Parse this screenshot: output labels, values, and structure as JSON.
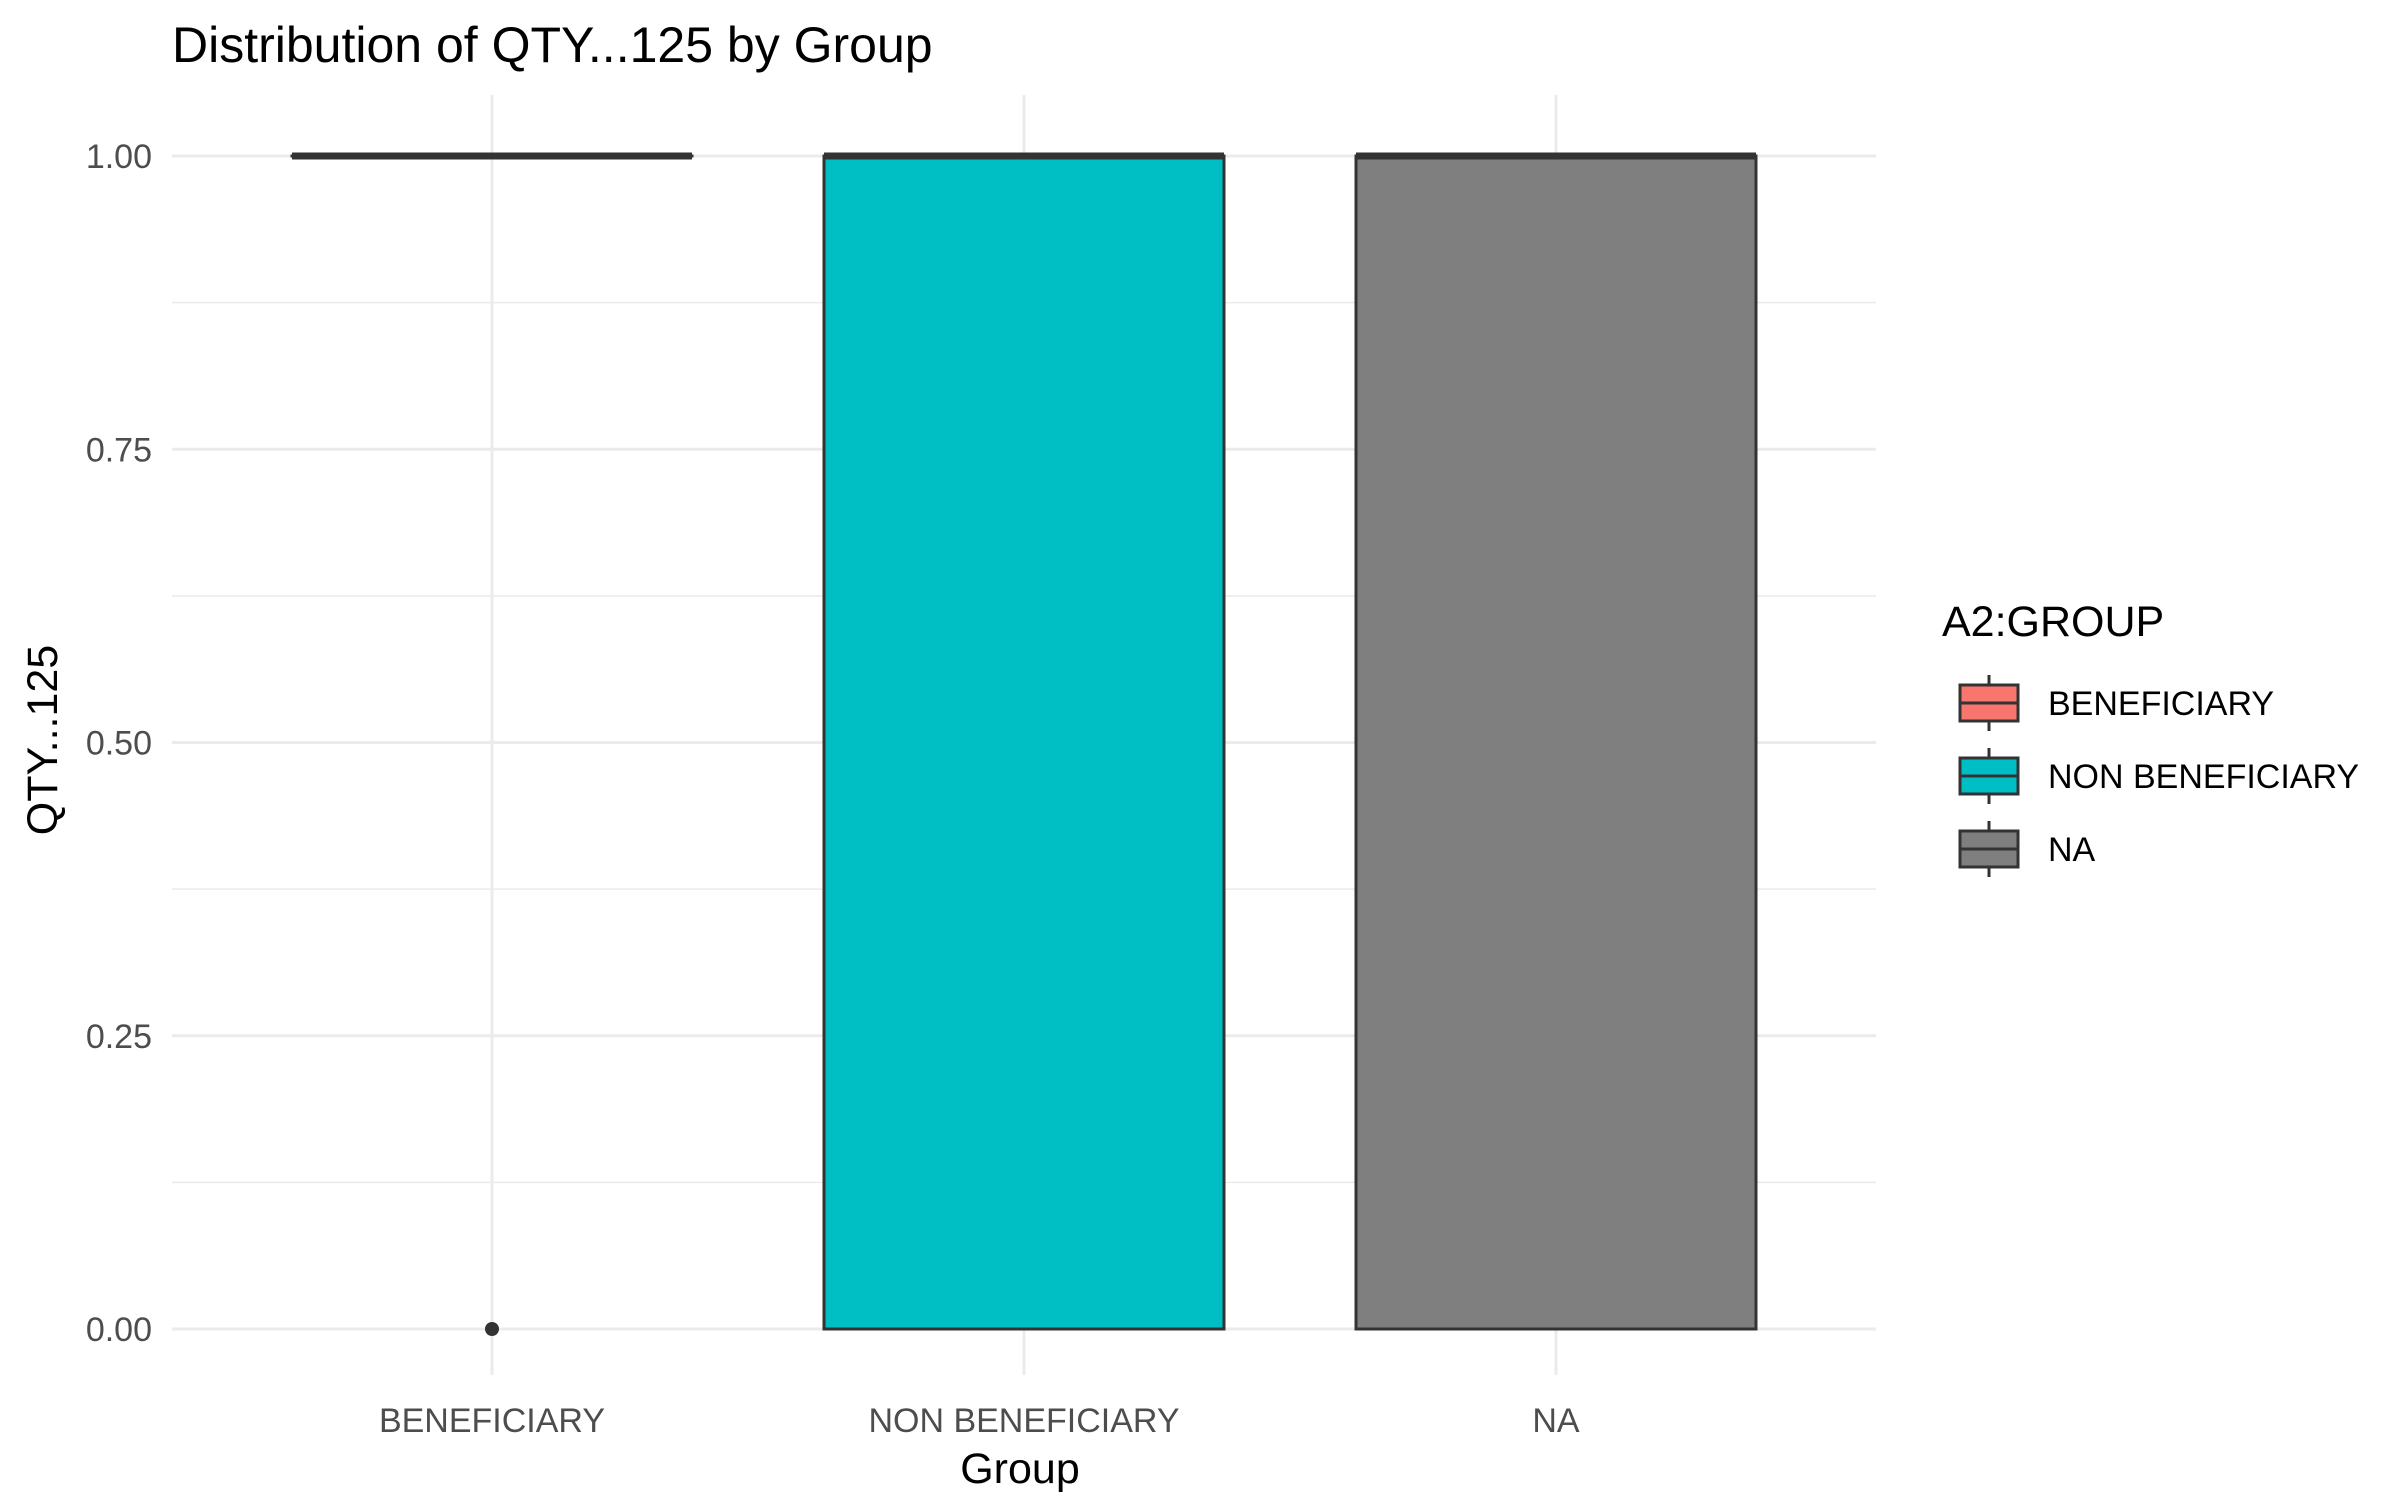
{
  "chart_data": {
    "type": "boxplot",
    "title": "Distribution of QTY...125 by Group",
    "xlabel": "Group",
    "ylabel": "QTY...125",
    "ylim": [
      0,
      1
    ],
    "yticks": [
      "0.00",
      "0.25",
      "0.50",
      "0.75",
      "1.00"
    ],
    "categories": [
      "BENEFICIARY",
      "NON BENEFICIARY",
      "NA"
    ],
    "legend": {
      "title": "A2:GROUP",
      "position": "right",
      "entries": [
        {
          "label": "BENEFICIARY",
          "color": "#f8766d"
        },
        {
          "label": "NON BENEFICIARY",
          "color": "#00bfc4"
        },
        {
          "label": "NA",
          "color": "#7f7f7f"
        }
      ]
    },
    "series": [
      {
        "category": "BENEFICIARY",
        "min": 1,
        "q1": 1,
        "median": 1,
        "q3": 1,
        "max": 1,
        "outliers": [
          0
        ],
        "color": "#f8766d"
      },
      {
        "category": "NON BENEFICIARY",
        "min": 0,
        "q1": 0,
        "median": 1,
        "q3": 1,
        "max": 1,
        "outliers": [],
        "color": "#00bfc4"
      },
      {
        "category": "NA",
        "min": 0,
        "q1": 0,
        "median": 1,
        "q3": 1,
        "max": 1,
        "outliers": [],
        "color": "#7f7f7f"
      }
    ],
    "grid": true
  }
}
